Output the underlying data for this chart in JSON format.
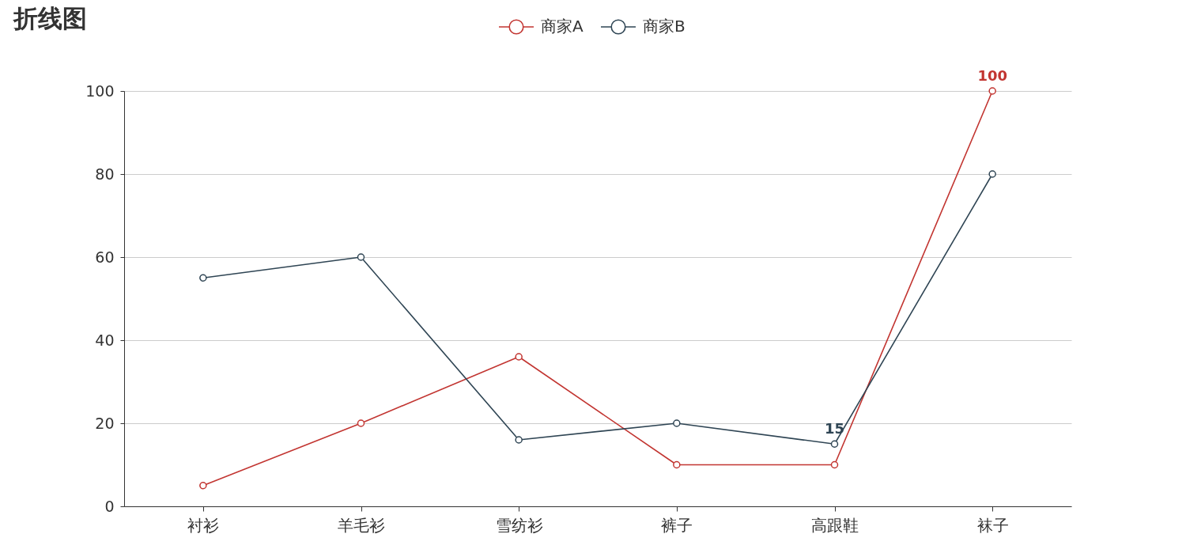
{
  "chart_data": {
    "type": "line",
    "title": "折线图",
    "categories": [
      "衬衫",
      "羊毛衫",
      "雪纺衫",
      "裤子",
      "高跟鞋",
      "袜子"
    ],
    "series": [
      {
        "name": "商家A",
        "color": "#c23531",
        "values": [
          5,
          20,
          36,
          10,
          10,
          100
        ]
      },
      {
        "name": "商家B",
        "color": "#2f4554",
        "values": [
          55,
          60,
          16,
          20,
          15,
          80
        ]
      }
    ],
    "ylim": [
      0,
      100
    ],
    "yticks": [
      0,
      20,
      40,
      60,
      80,
      100
    ],
    "grid": "y",
    "legend": "top",
    "marker": "circle",
    "line_style": "solid",
    "annotations": [
      {
        "text": "100",
        "x": "袜子",
        "y": 100
      },
      {
        "text": "15",
        "x": "高跟鞋",
        "y": 15
      }
    ]
  }
}
